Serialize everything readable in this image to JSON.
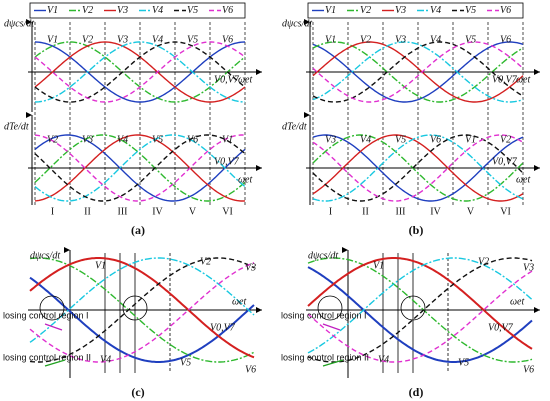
{
  "panels": [
    {
      "caption": "(a)",
      "legend": [
        "V1",
        "V2",
        "V3",
        "V4",
        "V5",
        "V6"
      ],
      "flux_label": "dψcs/dt",
      "torque_label": "dTe/dt",
      "axis_label": "ωet",
      "zero_vectors": "V0,V7",
      "flux_vectors": [
        "V1",
        "V2",
        "V3",
        "V4",
        "V5",
        "V6"
      ],
      "torque_vectors": [
        "V2",
        "V3",
        "V4",
        "V5",
        "V6",
        "V1"
      ],
      "sectors": [
        "I",
        "II",
        "III",
        "IV",
        "V",
        "VI"
      ]
    },
    {
      "caption": "(b)",
      "legend": [
        "V1",
        "V2",
        "V3",
        "V4",
        "V5",
        "V6"
      ],
      "flux_label": "dψcs/dt",
      "torque_label": "dTe/dt",
      "axis_label": "ωet",
      "zero_vectors": "V0,V7",
      "flux_vectors": [
        "V1",
        "V2",
        "V3",
        "V4",
        "V5",
        "V6"
      ],
      "torque_vectors": [
        "V3",
        "V4",
        "V5",
        "V6",
        "V1",
        "V2"
      ],
      "sectors": [
        "I",
        "II",
        "III",
        "IV",
        "V",
        "VI"
      ]
    },
    {
      "caption": "(c)",
      "flux_label": "dψcs/dt",
      "axis_label": "ωet",
      "zero_vectors": "V0,V7",
      "upper_vectors": [
        "V1",
        "V2",
        "V3"
      ],
      "lower_vectors": [
        "V4",
        "V5",
        "V6"
      ],
      "regions": [
        "losing control region I",
        "losing control region II"
      ]
    },
    {
      "caption": "(d)",
      "flux_label": "dψcs/dt",
      "axis_label": "ωet",
      "zero_vectors": "V0,V7",
      "upper_vectors": [
        "V1",
        "V2",
        "V3"
      ],
      "lower_vectors": [
        "V4",
        "V5",
        "V6"
      ],
      "regions": [
        "losing control region I",
        "losing control region II"
      ]
    }
  ]
}
